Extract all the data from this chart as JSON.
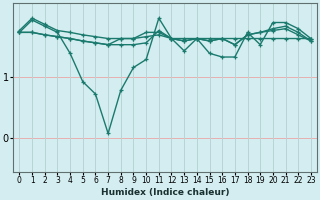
{
  "xlabel": "Humidex (Indice chaleur)",
  "ylabel": "",
  "xlim": [
    -0.5,
    23.5
  ],
  "ylim": [
    -0.55,
    2.2
  ],
  "yticks": [
    0,
    1
  ],
  "xticks": [
    0,
    1,
    2,
    3,
    4,
    5,
    6,
    7,
    8,
    9,
    10,
    11,
    12,
    13,
    14,
    15,
    16,
    17,
    18,
    19,
    20,
    21,
    22,
    23
  ],
  "bg_color": "#d4edf0",
  "line_color": "#1a7a6e",
  "grid_color_h": "#e8b0b0",
  "grid_color_v": "#b8d4d4",
  "lines": [
    [
      1.75,
      1.95,
      1.85,
      1.75,
      1.72,
      1.68,
      1.65,
      1.62,
      1.62,
      1.62,
      1.65,
      1.68,
      1.62,
      1.62,
      1.62,
      1.62,
      1.62,
      1.62,
      1.62,
      1.62,
      1.62,
      1.62,
      1.62,
      1.62
    ],
    [
      1.72,
      1.72,
      1.68,
      1.65,
      1.62,
      1.58,
      1.55,
      1.52,
      1.52,
      1.52,
      1.55,
      1.75,
      1.62,
      1.58,
      1.62,
      1.58,
      1.62,
      1.52,
      1.68,
      1.72,
      1.75,
      1.78,
      1.68,
      1.58
    ],
    [
      1.72,
      1.72,
      1.68,
      1.65,
      1.62,
      1.58,
      1.55,
      1.52,
      1.62,
      1.62,
      1.72,
      1.72,
      1.62,
      1.58,
      1.62,
      1.58,
      1.62,
      1.52,
      1.68,
      1.72,
      1.78,
      1.82,
      1.72,
      1.58
    ],
    [
      1.72,
      1.92,
      1.82,
      1.72,
      1.38,
      0.92,
      0.72,
      0.08,
      0.78,
      1.15,
      1.28,
      1.95,
      1.62,
      1.42,
      1.62,
      1.38,
      1.32,
      1.32,
      1.72,
      1.52,
      1.88,
      1.88,
      1.78,
      1.62
    ]
  ]
}
